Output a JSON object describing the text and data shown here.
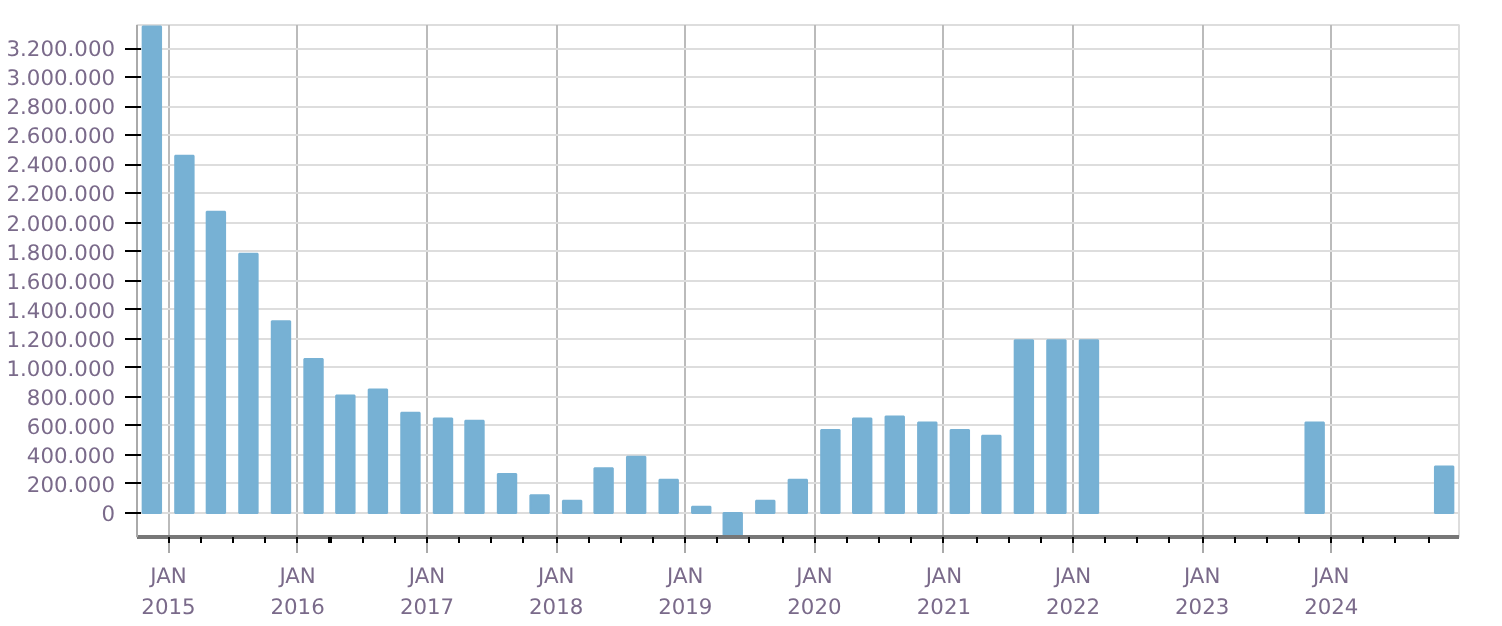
{
  "chart_data": {
    "type": "bar",
    "color": "#77b1d4",
    "x": [
      "2014-11-15",
      "2015-02-15",
      "2015-05-15",
      "2015-08-15",
      "2015-11-15",
      "2016-02-15",
      "2016-05-15",
      "2016-08-15",
      "2016-11-15",
      "2017-02-15",
      "2017-05-15",
      "2017-08-15",
      "2017-11-15",
      "2018-02-15",
      "2018-05-15",
      "2018-08-15",
      "2018-11-15",
      "2019-02-15",
      "2019-05-15",
      "2019-08-15",
      "2019-11-15",
      "2020-02-15",
      "2020-05-15",
      "2020-08-15",
      "2020-11-15",
      "2021-02-15",
      "2021-05-15",
      "2021-08-15",
      "2021-11-15",
      "2022-02-15",
      "2023-11-15",
      "2024-11-15"
    ],
    "values": [
      3350000,
      2460000,
      2075000,
      1785000,
      1320000,
      1060000,
      810000,
      850000,
      690000,
      650000,
      635000,
      268000,
      123000,
      84000,
      308000,
      387000,
      229000,
      44000,
      -150000,
      84000,
      229000,
      571000,
      650000,
      664000,
      624000,
      571000,
      532000,
      1190000,
      1190000,
      1190000,
      624000,
      321000
    ],
    "xlim": [
      "2014-10-04",
      "2024-12-27"
    ],
    "xticks": [
      {
        "value": "2015-01-01",
        "label": "JAN\n2015"
      },
      {
        "value": "2016-01-01",
        "label": "JAN\n2016"
      },
      {
        "value": "2017-01-01",
        "label": "JAN\n2017"
      },
      {
        "value": "2018-01-01",
        "label": "JAN\n2018"
      },
      {
        "value": "2019-01-01",
        "label": "JAN\n2019"
      },
      {
        "value": "2020-01-01",
        "label": "JAN\n2020"
      },
      {
        "value": "2021-01-01",
        "label": "JAN\n2021"
      },
      {
        "value": "2022-01-01",
        "label": "JAN\n2022"
      },
      {
        "value": "2023-01-01",
        "label": "JAN\n2023"
      },
      {
        "value": "2024-01-01",
        "label": "JAN\n2024"
      }
    ],
    "ylim": [
      -165000,
      3360000
    ],
    "yticks": [
      {
        "value": 0,
        "label": "0"
      },
      {
        "value": 200000,
        "label": "200.000"
      },
      {
        "value": 400000,
        "label": "400.000"
      },
      {
        "value": 600000,
        "label": "600.000"
      },
      {
        "value": 800000,
        "label": "800.000"
      },
      {
        "value": 1000000,
        "label": "1.000.000"
      },
      {
        "value": 1200000,
        "label": "1.200.000"
      },
      {
        "value": 1400000,
        "label": "1.400.000"
      },
      {
        "value": 1600000,
        "label": "1.600.000"
      },
      {
        "value": 1800000,
        "label": "1.800.000"
      },
      {
        "value": 2000000,
        "label": "2.000.000"
      },
      {
        "value": 2200000,
        "label": "2.200.000"
      },
      {
        "value": 2400000,
        "label": "2.400.000"
      },
      {
        "value": 2600000,
        "label": "2.600.000"
      },
      {
        "value": 2800000,
        "label": "2.800.000"
      },
      {
        "value": 3000000,
        "label": "3.000.000"
      },
      {
        "value": 3200000,
        "label": "3.200.000"
      }
    ],
    "grid": true
  }
}
